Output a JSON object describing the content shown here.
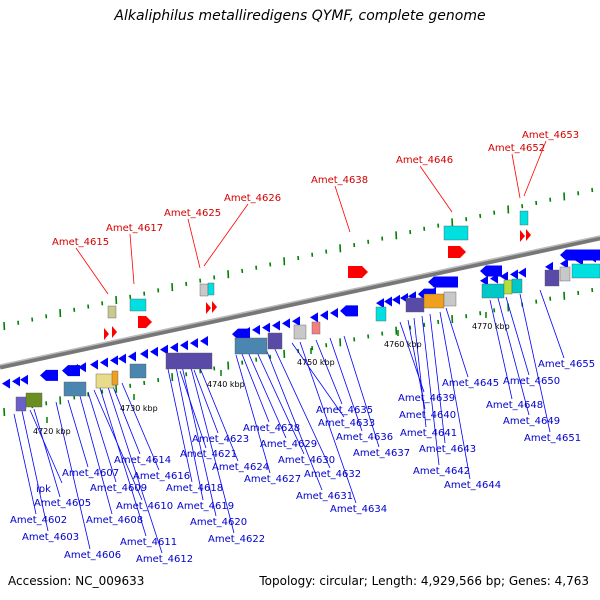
{
  "title": "Alkaliphilus metalliredigens QYMF, complete genome",
  "footer": {
    "accession": "Accession: NC_009633",
    "topology": "Topology: circular; Length: 4,929,566 bp; Genes: 4,763"
  },
  "colors": {
    "forward_strand_gene": "#ff0000",
    "reverse_strand_gene": "#0000ff",
    "backbone": "#888888",
    "tick": "#008000"
  },
  "scale_labels": [
    "4720 kbp",
    "4730 kbp",
    "4740 kbp",
    "4750 kbp",
    "4760 kbp",
    "4770 kbp"
  ],
  "red_labels": [
    "Amet_4615",
    "Amet_4617",
    "Amet_4625",
    "Amet_4626",
    "Amet_4638",
    "Amet_4646",
    "Amet_4652",
    "Amet_4653"
  ],
  "blue_labels": [
    "Amet_4602",
    "Amet_4603",
    "ipk",
    "Amet_4605",
    "Amet_4606",
    "Amet_4607",
    "Amet_4608",
    "Amet_4609",
    "Amet_4610",
    "Amet_4611",
    "Amet_4612",
    "Amet_4614",
    "Amet_4616",
    "Amet_4618",
    "Amet_4619",
    "Amet_4620",
    "Amet_4621",
    "Amet_4622",
    "Amet_4623",
    "Amet_4624",
    "Amet_4627",
    "Amet_4628",
    "Amet_4629",
    "Amet_4630",
    "Amet_4631",
    "Amet_4632",
    "Amet_4633",
    "Amet_4634",
    "Amet_4635",
    "Amet_4636",
    "Amet_4637",
    "Amet_4639",
    "Amet_4640",
    "Amet_4641",
    "Amet_4642",
    "Amet_4643",
    "Amet_4644",
    "Amet_4645",
    "Amet_4648",
    "Amet_4649",
    "Amet_4650",
    "Amet_4651",
    "Amet_4655"
  ]
}
